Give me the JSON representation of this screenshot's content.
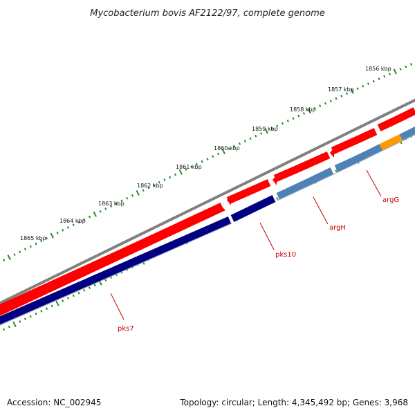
{
  "title": "Mycobacterium bovis AF2122/97, complete genome",
  "footer": {
    "accession": "Accession: NC_002945",
    "summary": "Topology: circular; Length: 4,345,492 bp; Genes: 3,968"
  },
  "scale_labels": [
    "1856 kbp",
    "1857 kbp",
    "1858 kbp",
    "1859 kbp",
    "1860 kbp",
    "1861 kbp",
    "1862 kbp",
    "1863 kbp",
    "1864 kbp",
    "1865 kbp"
  ],
  "genes": [
    {
      "name": "argG",
      "color": "#4f82b4"
    },
    {
      "name": "argH",
      "color": "#4f82b4"
    },
    {
      "name": "pks10",
      "color": "#000080"
    },
    {
      "name": "pks7",
      "color": "#000080"
    }
  ],
  "colors": {
    "backbone": "#808080",
    "cds": "#ff0000",
    "pks": "#000080",
    "arg": "#4f82b4",
    "highlight": "#ff9900",
    "ticks": "#228b22",
    "label": "#cc0000"
  }
}
